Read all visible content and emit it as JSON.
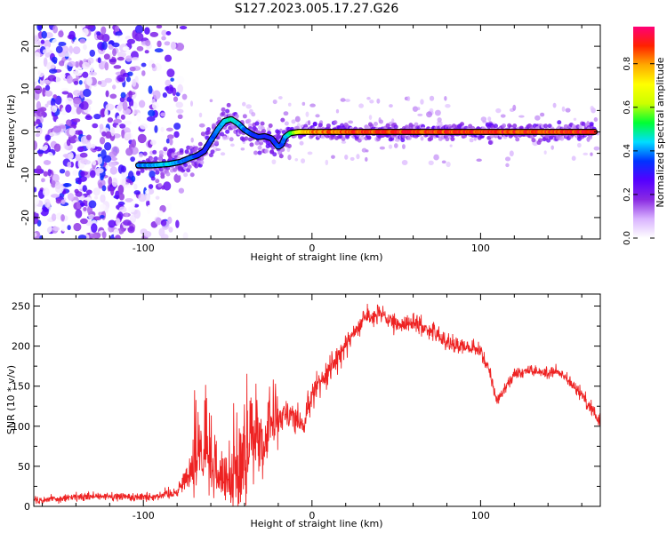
{
  "title": "S127.2023.005.17.27.G26",
  "chart_data": [
    {
      "type": "heatmap",
      "xlabel": "Height of straight line (km)",
      "ylabel": "Frequency (Hz)",
      "xlim": [
        -165,
        171
      ],
      "ylim": [
        -25,
        25
      ],
      "x_ticks": [
        -100,
        0,
        100
      ],
      "y_ticks": [
        -20,
        -10,
        0,
        10,
        20
      ],
      "grid": false,
      "ridge": {
        "x": [
          -103,
          -95,
          -85,
          -78,
          -72,
          -68,
          -64,
          -60,
          -56,
          -52,
          -48,
          -44,
          -40,
          -36,
          -32,
          -28,
          -24,
          -20,
          -18,
          -16,
          -13,
          -8,
          0,
          20,
          60,
          100,
          135,
          168
        ],
        "y": [
          -7.8,
          -7.8,
          -7.5,
          -7.0,
          -6.0,
          -5.5,
          -4.5,
          -2.0,
          0.5,
          2.5,
          3.0,
          2.0,
          0.5,
          -0.5,
          -1.2,
          -1.0,
          -1.5,
          -3.5,
          -3.0,
          -1.2,
          -0.3,
          0.0,
          0.0,
          0.0,
          0.0,
          0.0,
          0.0,
          0.0
        ],
        "amplitude": [
          0.4,
          0.42,
          0.45,
          0.4,
          0.38,
          0.35,
          0.33,
          0.38,
          0.42,
          0.46,
          0.5,
          0.45,
          0.4,
          0.36,
          0.34,
          0.34,
          0.33,
          0.38,
          0.36,
          0.4,
          0.5,
          0.72,
          0.82,
          0.88,
          0.9,
          0.9,
          0.9,
          0.9
        ]
      },
      "colorbar": {
        "label": "Normalized spectral amplitude",
        "range": [
          0,
          0.97
        ],
        "ticks": [
          0.0,
          0.2,
          0.4,
          0.6,
          0.8
        ],
        "colors": [
          "#ffffff",
          "#d9b3ff",
          "#8a2be2",
          "#5500ff",
          "#0033ff",
          "#00ddff",
          "#00ff33",
          "#ccff00",
          "#ffff00",
          "#ffaa00",
          "#ff2200",
          "#ff0077"
        ]
      }
    },
    {
      "type": "line",
      "xlabel": "Height of straight line (km)",
      "ylabel": "SNR (10 * v/v)",
      "xlim": [
        -165,
        171
      ],
      "ylim": [
        0,
        265
      ],
      "x_ticks": [
        -100,
        0,
        100
      ],
      "y_ticks": [
        0,
        50,
        100,
        150,
        200,
        250
      ],
      "grid": false,
      "series": [
        {
          "color": "#ee2222",
          "x": [
            -165,
            -150,
            -130,
            -110,
            -95,
            -80,
            -75,
            -70,
            -65,
            -60,
            -55,
            -50,
            -45,
            -40,
            -35,
            -30,
            -25,
            -20,
            -15,
            -10,
            -5,
            0,
            10,
            20,
            30,
            40,
            50,
            60,
            70,
            80,
            90,
            100,
            105,
            110,
            115,
            120,
            130,
            140,
            145,
            150,
            160,
            171
          ],
          "y": [
            8,
            10,
            12,
            12,
            12,
            18,
            35,
            55,
            70,
            45,
            30,
            25,
            40,
            70,
            80,
            60,
            95,
            110,
            120,
            110,
            100,
            140,
            170,
            200,
            235,
            240,
            225,
            230,
            220,
            205,
            200,
            195,
            170,
            130,
            150,
            165,
            170,
            165,
            170,
            160,
            140,
            105
          ],
          "noise": [
            7,
            7,
            7,
            8,
            8,
            10,
            20,
            50,
            60,
            45,
            25,
            40,
            80,
            90,
            60,
            50,
            40,
            30,
            25,
            25,
            25,
            25,
            25,
            20,
            18,
            16,
            16,
            16,
            16,
            16,
            14,
            12,
            14,
            12,
            10,
            10,
            10,
            10,
            10,
            10,
            12,
            14
          ]
        }
      ]
    }
  ]
}
